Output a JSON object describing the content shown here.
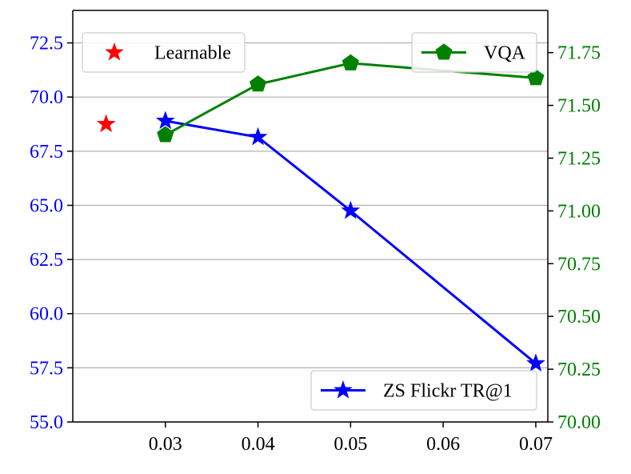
{
  "chart_data": {
    "type": "line",
    "title": "",
    "xlabel": "",
    "ylabel_left": "",
    "ylabel_right": "",
    "x_ticks": [
      "0.03",
      "0.04",
      "0.05",
      "0.06",
      "0.07"
    ],
    "x_tick_values": [
      0.03,
      0.04,
      0.05,
      0.06,
      0.07
    ],
    "xlim": [
      0.02,
      0.0713
    ],
    "y_left": {
      "lim": [
        55.0,
        74.0
      ],
      "ticks": [
        "55.0",
        "57.5",
        "60.0",
        "62.5",
        "65.0",
        "67.5",
        "70.0",
        "72.5"
      ],
      "tick_values": [
        55.0,
        57.5,
        60.0,
        62.5,
        65.0,
        67.5,
        70.0,
        72.5
      ],
      "color": "#0000ff"
    },
    "y_right": {
      "lim": [
        70.0,
        71.95
      ],
      "ticks": [
        "70.00",
        "70.25",
        "70.50",
        "70.75",
        "71.00",
        "71.25",
        "71.50",
        "71.75"
      ],
      "tick_values": [
        70.0,
        70.25,
        70.5,
        70.75,
        71.0,
        71.25,
        71.5,
        71.75
      ],
      "color": "#008000"
    },
    "grid": "horizontal, at left-axis ticks",
    "series": [
      {
        "name": "ZS Flickr TR@1",
        "axis": "left",
        "color": "#0000ff",
        "marker": "star",
        "x": [
          0.03,
          0.04,
          0.05,
          0.07
        ],
        "y": [
          68.9,
          68.15,
          64.75,
          57.7
        ],
        "legend_position": "lower-right"
      },
      {
        "name": "VQA",
        "axis": "right",
        "color": "#008000",
        "marker": "pentagon",
        "x": [
          0.03,
          0.04,
          0.05,
          0.07
        ],
        "y": [
          71.36,
          71.6,
          71.7,
          71.63
        ],
        "legend_position": "upper-right"
      },
      {
        "name": "Learnable",
        "axis": "left",
        "color": "#ff0000",
        "marker": "star",
        "x": [
          0.0236
        ],
        "y": [
          68.75
        ],
        "legend_position": "upper-left"
      }
    ]
  }
}
